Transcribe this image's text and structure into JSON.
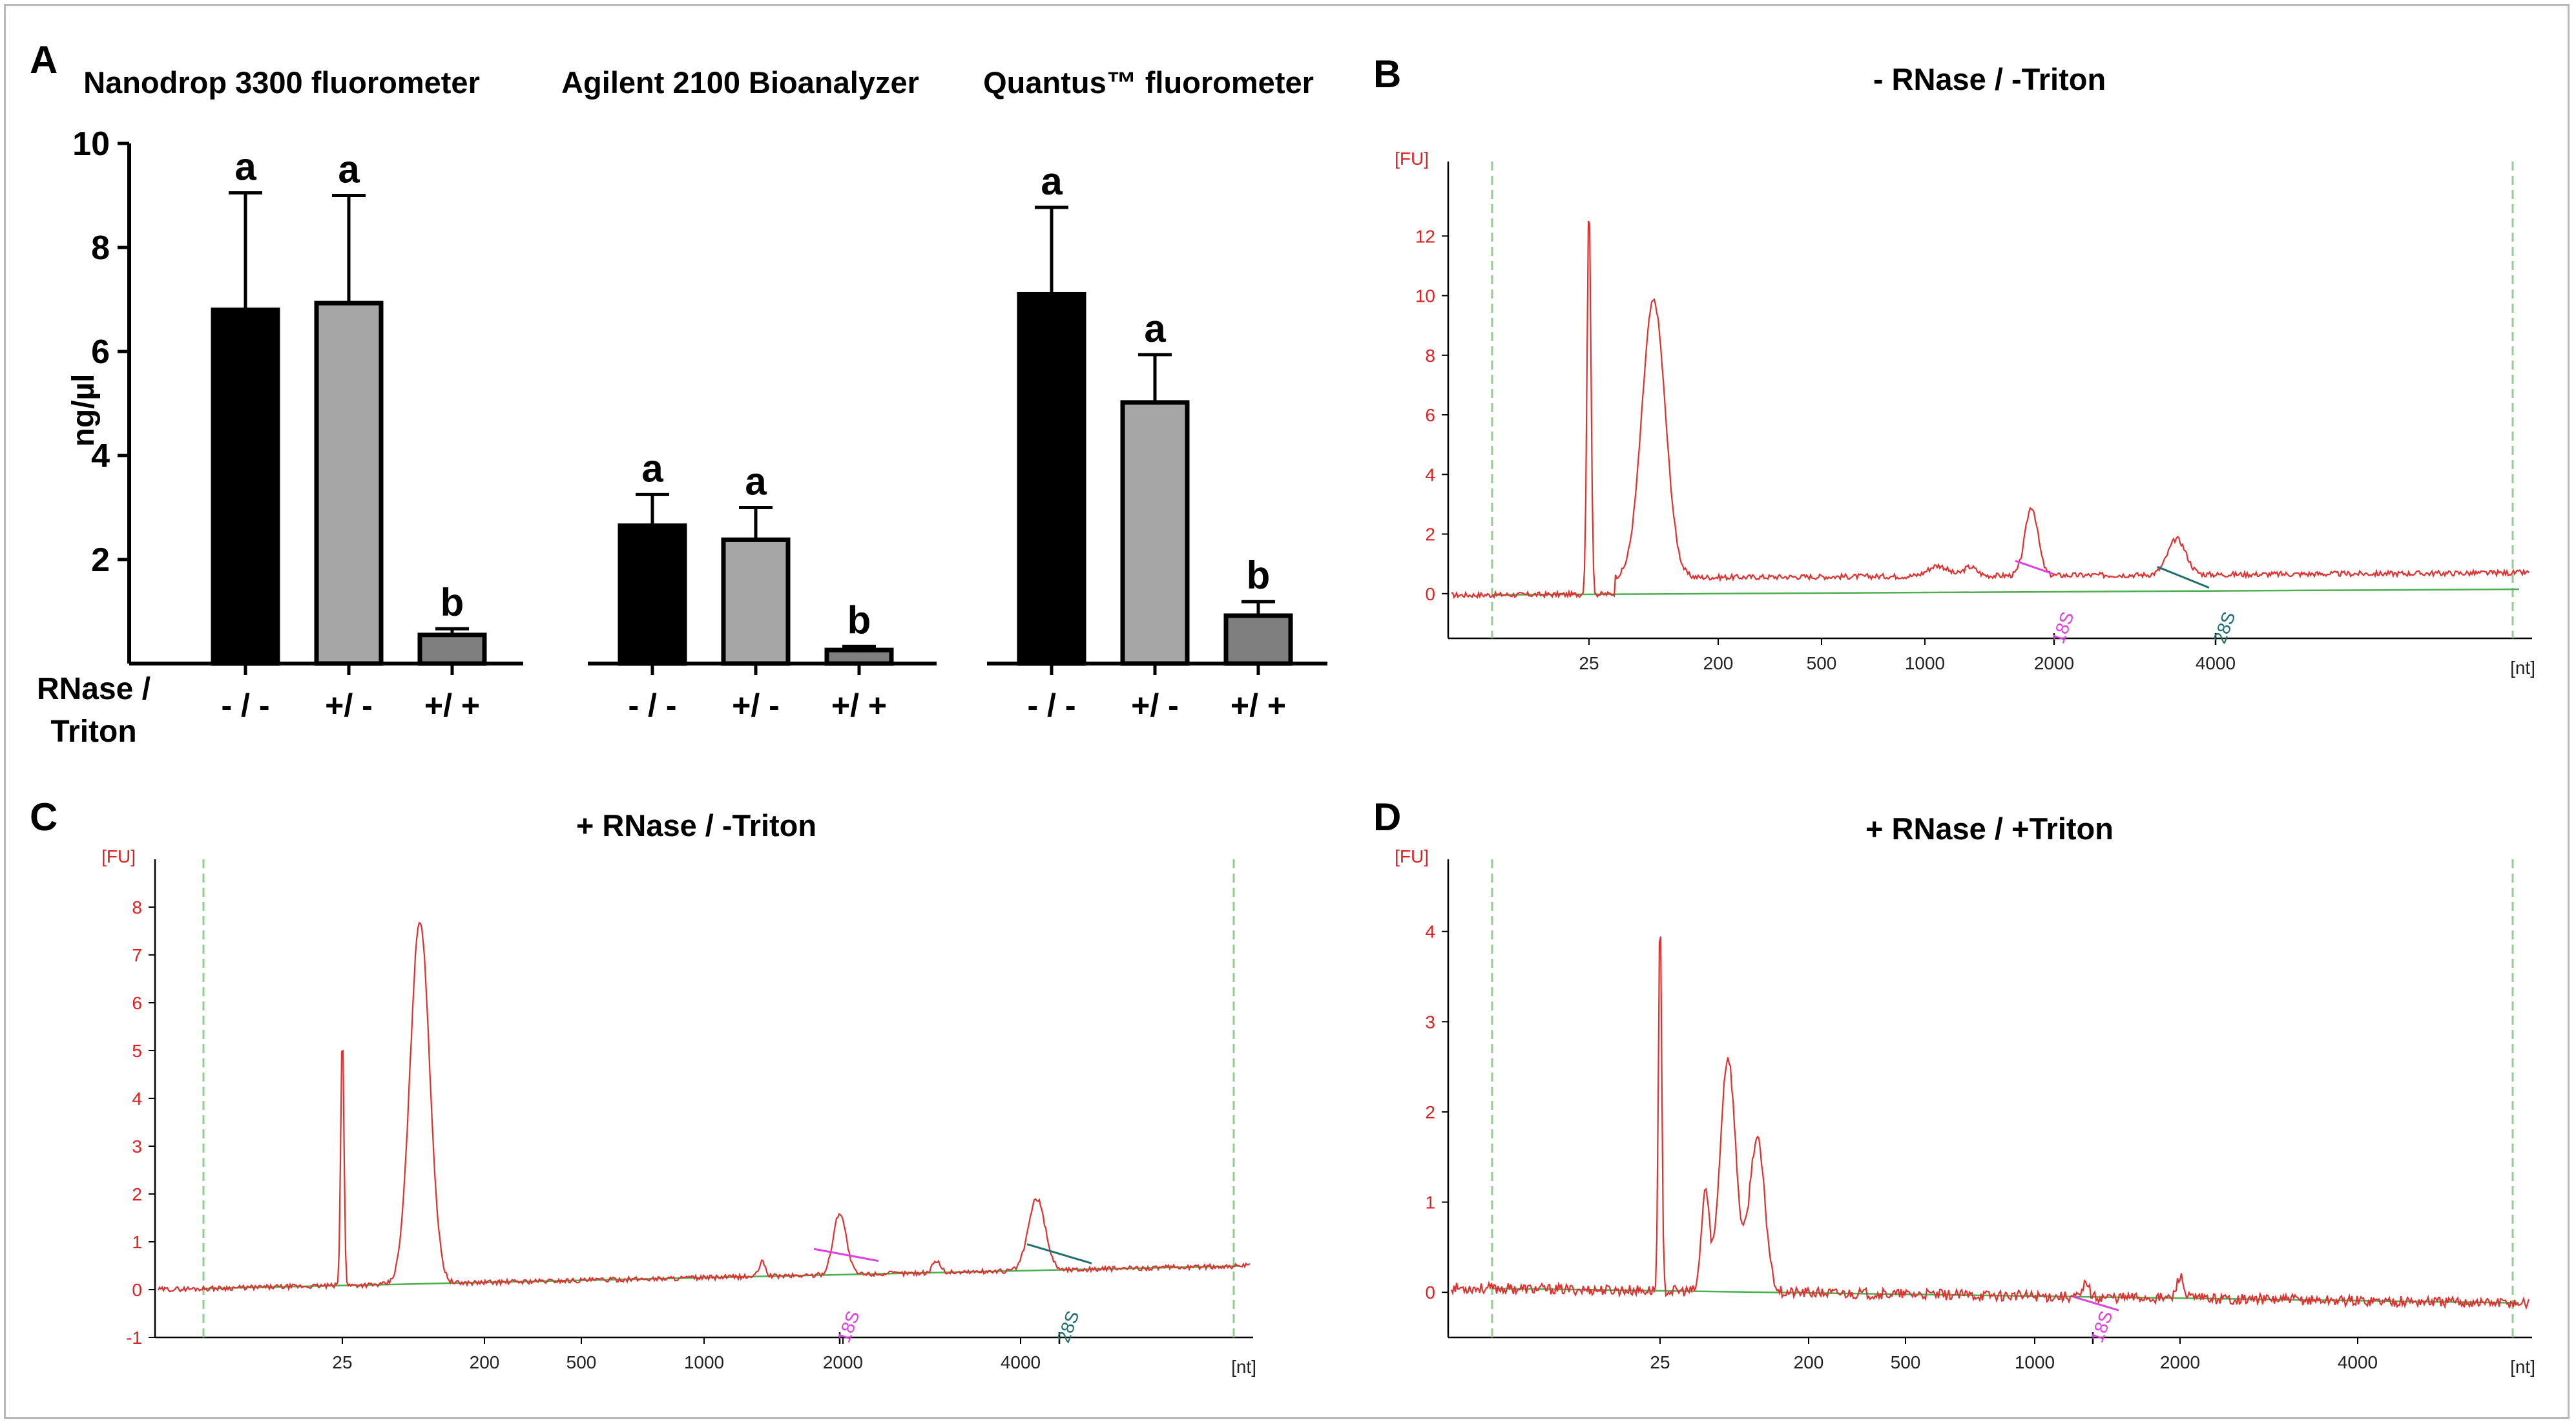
{
  "panels": {
    "A": {
      "letter": "A",
      "y_axis_label": "ng/µl",
      "y_ticks": [
        "2",
        "4",
        "6",
        "8",
        "10"
      ],
      "x_row_label_line1": "RNase /",
      "x_row_label_line2": "Triton"
    },
    "B": {
      "letter": "B",
      "title": "- RNase / -Triton"
    },
    "C": {
      "letter": "C",
      "title": "+ RNase / -Triton"
    },
    "D": {
      "letter": "D",
      "title": "+ RNase / +Triton"
    }
  },
  "colors": {
    "bar_dark": "#000000",
    "bar_light": "#a6a6a6",
    "bar_mid": "#7f7f7f",
    "trace": "#e0302f",
    "axis_red": "#e02020",
    "baseline": "#4caf50",
    "marker_green": "#8fce8f",
    "label_18S": "#e040e0",
    "label_28S": "#1f6f6f"
  },
  "chart_data": [
    {
      "type": "bar",
      "panel": "A",
      "title": "Nanodrop 3300 fluorometer",
      "categories": [
        "- / -",
        "+/ -",
        "+/ +"
      ],
      "values": [
        6.8,
        6.93,
        0.55
      ],
      "errors": [
        2.25,
        2.07,
        0.12
      ],
      "letters": [
        "a",
        "a",
        "b"
      ],
      "ylabel": "ng/µl",
      "ylim": [
        0,
        10
      ]
    },
    {
      "type": "bar",
      "panel": "A",
      "title": "Agilent 2100 Bioanalyzer",
      "categories": [
        "- / -",
        "+/ -",
        "+/ +"
      ],
      "values": [
        2.65,
        2.38,
        0.26
      ],
      "errors": [
        0.6,
        0.62,
        0.07
      ],
      "letters": [
        "a",
        "a",
        "b"
      ],
      "ylabel": "ng/µl",
      "ylim": [
        0,
        10
      ]
    },
    {
      "type": "bar",
      "panel": "A",
      "title": "Quantus™ fluorometer",
      "categories": [
        "- / -",
        "+/ -",
        "+/ +"
      ],
      "values": [
        7.1,
        5.02,
        0.92
      ],
      "errors": [
        1.67,
        0.92,
        0.27
      ],
      "letters": [
        "a",
        "a",
        "b"
      ],
      "ylabel": "ng/µl",
      "ylim": [
        0,
        10
      ]
    },
    {
      "type": "line",
      "panel": "B",
      "title": "- RNase / -Triton",
      "ylabel": "[FU]",
      "xlabel": "[nt]",
      "x_ticks": [
        "25",
        "200",
        "500",
        "1000",
        "2000",
        "4000"
      ],
      "y_ticks": [
        "0",
        "2",
        "4",
        "6",
        "8",
        "10",
        "12"
      ],
      "ylim": [
        -1.5,
        14.5
      ],
      "annotations": [
        "18S",
        "28S"
      ],
      "peaks": [
        {
          "label": "25",
          "height": 13.2
        },
        {
          "label": "~100",
          "height": 10.5
        },
        {
          "label": "18S",
          "height": 3.2
        },
        {
          "label": "28S",
          "height": 1.9
        }
      ]
    },
    {
      "type": "line",
      "panel": "C",
      "title": "+ RNase / -Triton",
      "ylabel": "[FU]",
      "xlabel": "[nt]",
      "x_ticks": [
        "25",
        "200",
        "500",
        "1000",
        "2000",
        "4000"
      ],
      "y_ticks": [
        "-1",
        "0",
        "1",
        "2",
        "3",
        "4",
        "5",
        "6",
        "7",
        "8"
      ],
      "ylim": [
        -1,
        9
      ],
      "annotations": [
        "18S",
        "28S"
      ],
      "peaks": [
        {
          "label": "25",
          "height": 5.4
        },
        {
          "label": "~100",
          "height": 8.1
        },
        {
          "label": "18S",
          "height": 1.6
        },
        {
          "label": "28S",
          "height": 1.9
        }
      ]
    },
    {
      "type": "line",
      "panel": "D",
      "title": "+ RNase / +Triton",
      "ylabel": "[FU]",
      "xlabel": "[nt]",
      "x_ticks": [
        "25",
        "200",
        "500",
        "1000",
        "2000",
        "4000"
      ],
      "y_ticks": [
        "0",
        "1",
        "2",
        "3",
        "4"
      ],
      "ylim": [
        -0.5,
        4.8
      ],
      "annotations": [
        "18S"
      ],
      "peaks": [
        {
          "label": "25",
          "height": 4.3
        },
        {
          "label": "~100",
          "height": 2.8
        }
      ]
    }
  ]
}
